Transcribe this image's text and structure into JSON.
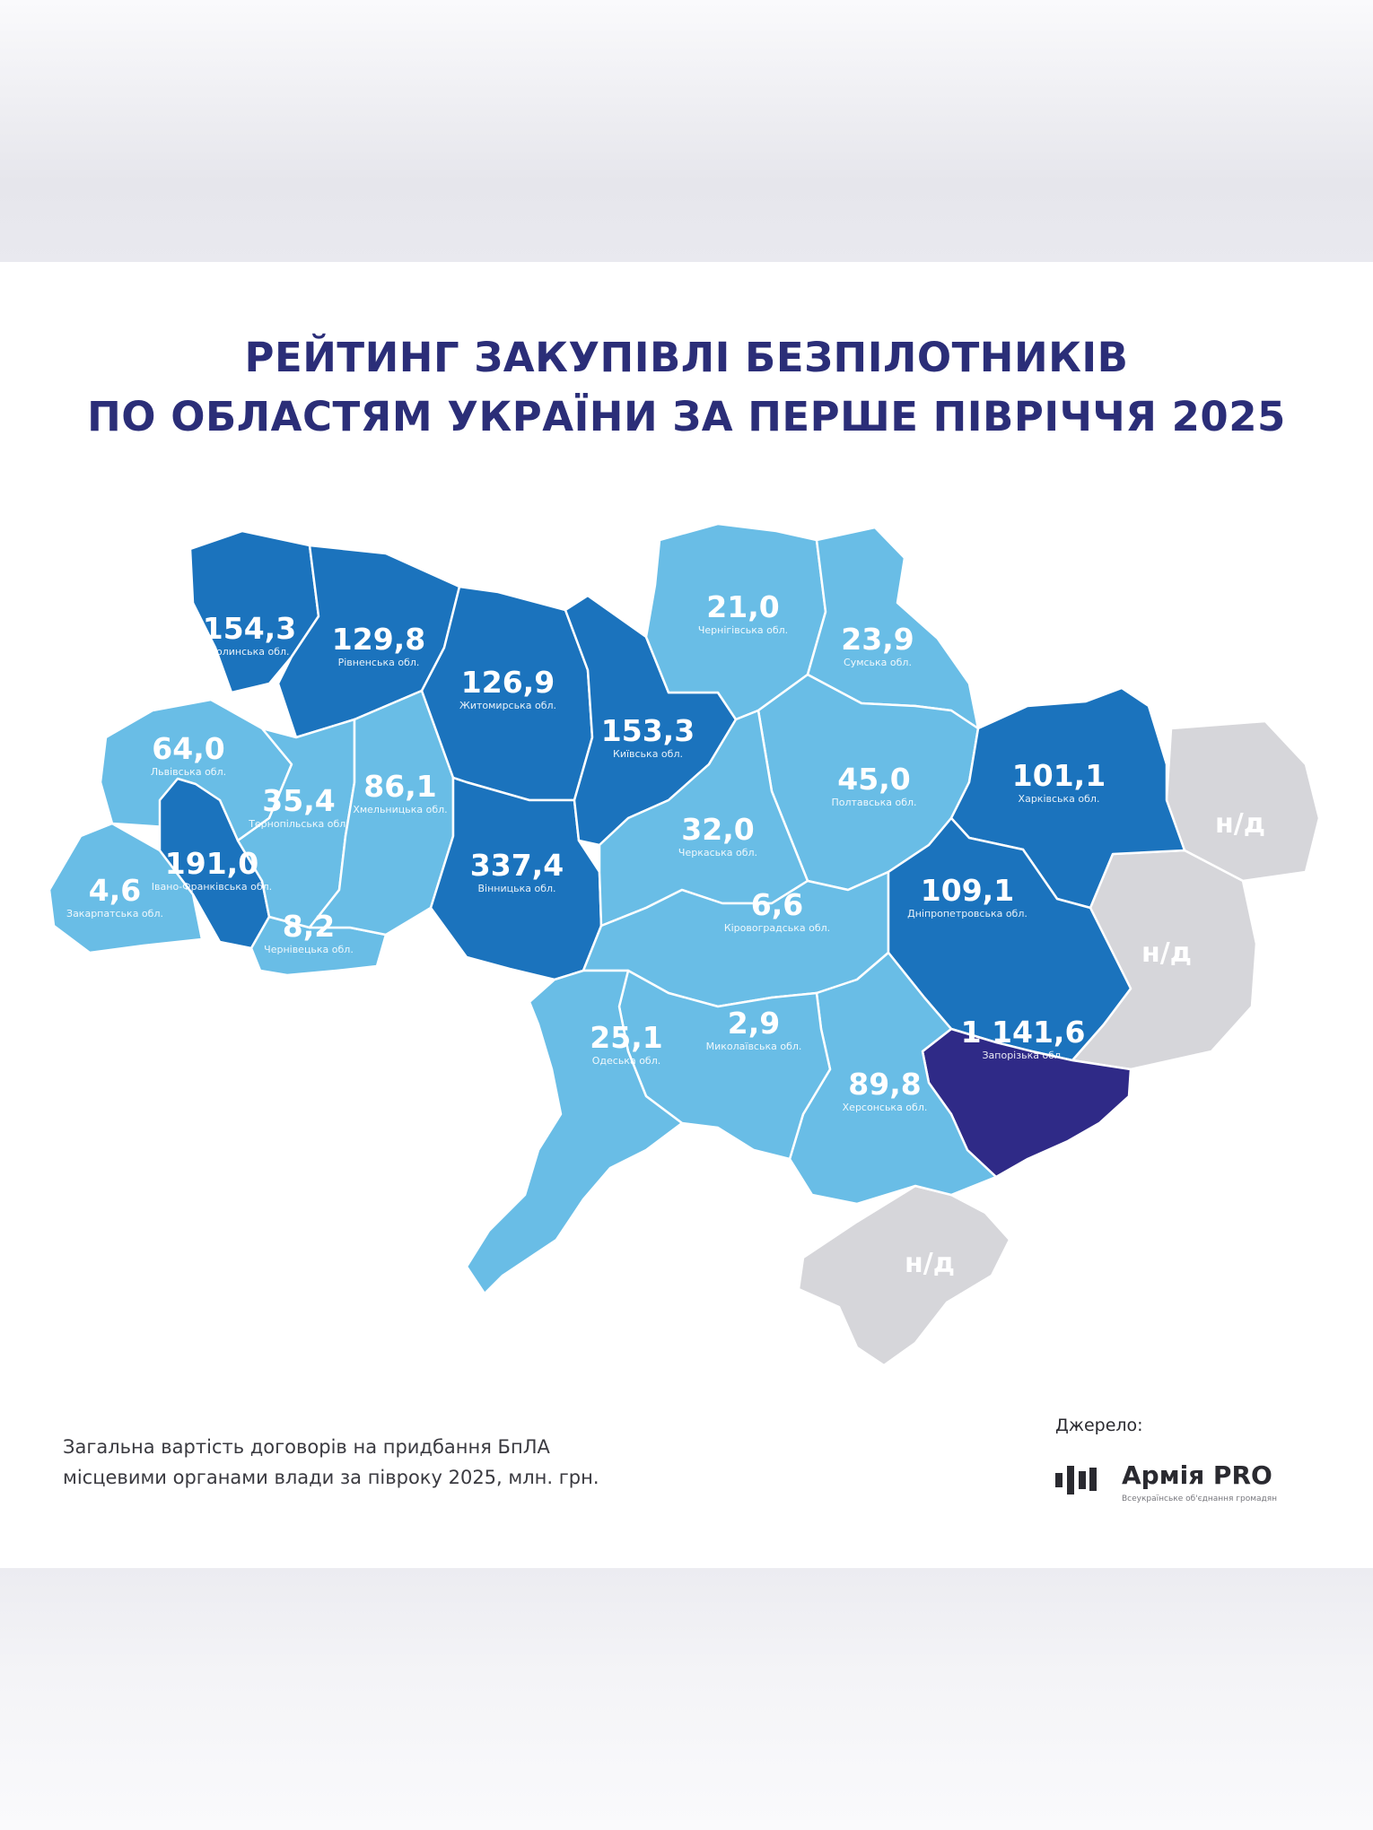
{
  "title": {
    "line1": "РЕЙТИНГ ЗАКУПІВЛІ БЕЗПІЛОТНИКІВ",
    "line2": "ПО ОБЛАСТЯМ УКРАЇНИ ЗА ПЕРШЕ ПІВРІЧЧЯ 2025"
  },
  "colors": {
    "light": "#69bde6",
    "medium": "#1b73bd",
    "dark": "#2f2a87",
    "no_data": "#d6d6da",
    "title": "#2b2e78"
  },
  "regions": [
    {
      "id": "volyn",
      "value": "154,3",
      "name": "Волинська обл.",
      "tier": "medium"
    },
    {
      "id": "rivne",
      "value": "129,8",
      "name": "Рівненська обл.",
      "tier": "medium"
    },
    {
      "id": "zhytomyr",
      "value": "126,9",
      "name": "Житомирська обл.",
      "tier": "medium"
    },
    {
      "id": "kyiv",
      "value": "153,3",
      "name": "Київська обл.",
      "tier": "medium"
    },
    {
      "id": "chernihiv",
      "value": "21,0",
      "name": "Чернігівська обл.",
      "tier": "light"
    },
    {
      "id": "sumy",
      "value": "23,9",
      "name": "Сумська обл.",
      "tier": "light"
    },
    {
      "id": "lviv",
      "value": "64,0",
      "name": "Львівська обл.",
      "tier": "light"
    },
    {
      "id": "ternopil",
      "value": "35,4",
      "name": "Тернопільська обл.",
      "tier": "light"
    },
    {
      "id": "khmelnytskyi",
      "value": "86,1",
      "name": "Хмельницька обл.",
      "tier": "light"
    },
    {
      "id": "vinnytsia",
      "value": "337,4",
      "name": "Вінницька обл.",
      "tier": "medium"
    },
    {
      "id": "poltava",
      "value": "45,0",
      "name": "Полтавська обл.",
      "tier": "light"
    },
    {
      "id": "kharkiv",
      "value": "101,1",
      "name": "Харківська обл.",
      "tier": "medium"
    },
    {
      "id": "ivano_frankivsk",
      "value": "191,0",
      "name": "Івано-Франківська обл.",
      "tier": "medium"
    },
    {
      "id": "zakarpattia",
      "value": "4,6",
      "name": "Закарпатська обл.",
      "tier": "light"
    },
    {
      "id": "chernivtsi",
      "value": "8,2",
      "name": "Чернівецька обл.",
      "tier": "light"
    },
    {
      "id": "cherkasy",
      "value": "32,0",
      "name": "Черкаська обл.",
      "tier": "light"
    },
    {
      "id": "kirovohrad",
      "value": "6,6",
      "name": "Кіровоградська обл.",
      "tier": "light"
    },
    {
      "id": "dnipro",
      "value": "109,1",
      "name": "Дніпропетровська обл.",
      "tier": "medium"
    },
    {
      "id": "odesa",
      "value": "25,1",
      "name": "Одеська обл.",
      "tier": "light"
    },
    {
      "id": "mykolaiv",
      "value": "2,9",
      "name": "Миколаївська обл.",
      "tier": "light"
    },
    {
      "id": "kherson",
      "value": "89,8",
      "name": "Херсонська обл.",
      "tier": "light"
    },
    {
      "id": "zaporizhzhia",
      "value": "1 141,6",
      "name": "Запорізька обл.",
      "tier": "dark"
    },
    {
      "id": "luhansk",
      "value": "н/д",
      "name": "",
      "tier": "no_data"
    },
    {
      "id": "donetsk",
      "value": "н/д",
      "name": "",
      "tier": "no_data"
    },
    {
      "id": "crimea",
      "value": "н/д",
      "name": "",
      "tier": "no_data"
    }
  ],
  "footnote": {
    "line1": "Загальна вартість договорів на придбання БпЛА",
    "line2": "місцевими органами влади за півроку 2025, млн. грн."
  },
  "source": {
    "label": "Джерело:",
    "logo_name": "Армія PRO",
    "logo_sub": "Всеукраїнське об'єднання громадян"
  }
}
